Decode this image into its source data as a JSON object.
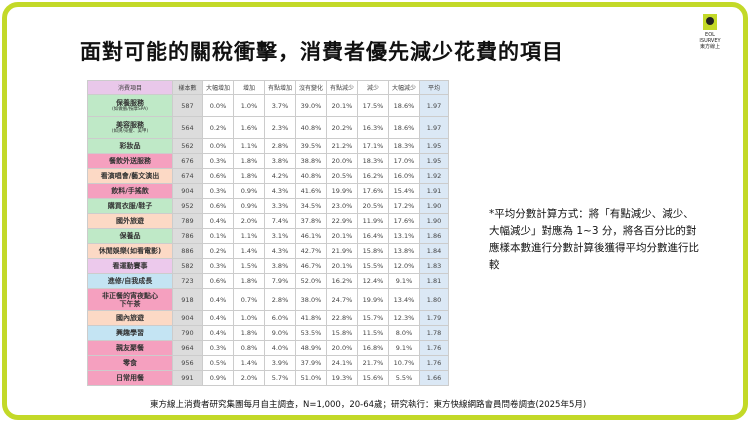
{
  "title": "面對可能的關稅衝擊，消費者優先減少花費的項目",
  "logo": {
    "line1": "EOL",
    "line2": "ISURVEY",
    "line3": "東方線上"
  },
  "table": {
    "headers": [
      "消費項目",
      "樣本數",
      "大幅增加",
      "增加",
      "有點增加",
      "沒有變化",
      "有點減少",
      "減少",
      "大幅減少",
      "平均"
    ],
    "rows": [
      {
        "item": "保養服務",
        "sub": "(如做臉/按摩SPA)",
        "c": "g",
        "n": "587",
        "v": [
          "0.0%",
          "1.0%",
          "3.7%",
          "39.0%",
          "20.1%",
          "17.5%",
          "18.6%"
        ],
        "avg": "1.97"
      },
      {
        "item": "美容服務",
        "sub": "(如燙/染髮、美甲)",
        "c": "g",
        "n": "564",
        "v": [
          "0.2%",
          "1.6%",
          "2.3%",
          "40.8%",
          "20.2%",
          "16.3%",
          "18.6%"
        ],
        "avg": "1.97"
      },
      {
        "item": "彩妝品",
        "c": "g",
        "n": "562",
        "v": [
          "0.0%",
          "1.1%",
          "2.8%",
          "39.5%",
          "21.2%",
          "17.1%",
          "18.3%"
        ],
        "avg": "1.95"
      },
      {
        "item": "餐飲外送服務",
        "c": "p",
        "n": "676",
        "v": [
          "0.3%",
          "1.8%",
          "3.8%",
          "38.8%",
          "20.0%",
          "18.3%",
          "17.0%"
        ],
        "avg": "1.95"
      },
      {
        "item": "看演唱會/藝文演出",
        "c": "o",
        "n": "674",
        "v": [
          "0.6%",
          "1.8%",
          "4.2%",
          "40.8%",
          "20.5%",
          "16.2%",
          "16.0%"
        ],
        "avg": "1.92"
      },
      {
        "item": "飲料/手搖飲",
        "c": "p",
        "n": "904",
        "v": [
          "0.3%",
          "0.9%",
          "4.3%",
          "41.6%",
          "19.9%",
          "17.6%",
          "15.4%"
        ],
        "avg": "1.91"
      },
      {
        "item": "購買衣服/鞋子",
        "c": "g",
        "n": "952",
        "v": [
          "0.6%",
          "0.9%",
          "3.3%",
          "34.5%",
          "23.0%",
          "20.5%",
          "17.2%"
        ],
        "avg": "1.90"
      },
      {
        "item": "國外旅遊",
        "c": "o",
        "n": "789",
        "v": [
          "0.4%",
          "2.0%",
          "7.4%",
          "37.8%",
          "22.9%",
          "11.9%",
          "17.6%"
        ],
        "avg": "1.90"
      },
      {
        "item": "保養品",
        "c": "g",
        "n": "786",
        "v": [
          "0.1%",
          "1.1%",
          "3.1%",
          "46.1%",
          "20.1%",
          "16.4%",
          "13.1%"
        ],
        "avg": "1.86"
      },
      {
        "item": "休閒娛樂(如看電影)",
        "c": "o",
        "n": "886",
        "v": [
          "0.2%",
          "1.4%",
          "4.3%",
          "42.7%",
          "21.9%",
          "15.8%",
          "13.8%"
        ],
        "avg": "1.84"
      },
      {
        "item": "看運動賽事",
        "c": "l",
        "n": "582",
        "v": [
          "0.3%",
          "1.5%",
          "3.8%",
          "46.7%",
          "20.1%",
          "15.5%",
          "12.0%"
        ],
        "avg": "1.83"
      },
      {
        "item": "進修/自我成長",
        "c": "b",
        "n": "723",
        "v": [
          "0.6%",
          "1.8%",
          "7.9%",
          "52.0%",
          "16.2%",
          "12.4%",
          "9.1%"
        ],
        "avg": "1.81"
      },
      {
        "item": "非正餐的宵夜點心",
        "sub2": "下午茶",
        "c": "p",
        "n": "918",
        "v": [
          "0.4%",
          "0.7%",
          "2.8%",
          "38.0%",
          "24.7%",
          "19.9%",
          "13.4%"
        ],
        "avg": "1.80"
      },
      {
        "item": "國內旅遊",
        "c": "o",
        "n": "904",
        "v": [
          "0.4%",
          "1.0%",
          "6.0%",
          "41.8%",
          "22.8%",
          "15.7%",
          "12.3%"
        ],
        "avg": "1.79"
      },
      {
        "item": "興趣學習",
        "c": "b",
        "n": "790",
        "v": [
          "0.4%",
          "1.8%",
          "9.0%",
          "53.5%",
          "15.8%",
          "11.5%",
          "8.0%"
        ],
        "avg": "1.78"
      },
      {
        "item": "親友聚餐",
        "c": "p",
        "n": "964",
        "v": [
          "0.3%",
          "0.8%",
          "4.0%",
          "48.9%",
          "20.0%",
          "16.8%",
          "9.1%"
        ],
        "avg": "1.76"
      },
      {
        "item": "零食",
        "c": "p",
        "n": "956",
        "v": [
          "0.5%",
          "1.4%",
          "3.9%",
          "37.9%",
          "24.1%",
          "21.7%",
          "10.7%"
        ],
        "avg": "1.76"
      },
      {
        "item": "日常用餐",
        "c": "p",
        "n": "991",
        "v": [
          "0.9%",
          "2.0%",
          "5.7%",
          "51.0%",
          "19.3%",
          "15.6%",
          "5.5%"
        ],
        "avg": "1.66"
      }
    ]
  },
  "note": "*平均分數計算方式：將「有點減少、減少、大幅減少」對應為 1~3 分，將各百分比的對應樣本數進行分數計算後獲得平均分數進行比較",
  "footer": "東方線上消費者研究集團每月自主調查，N=1,000，20-64歲；研究執行：東方快線網路會員問卷調查(2025年5月)",
  "colors": {
    "frame": "#c3d928",
    "green": "#bfe9c7",
    "pink": "#f5a0bf",
    "peach": "#fcd9c5",
    "lavender": "#ecc9ec",
    "blue": "#c4e4f3"
  }
}
